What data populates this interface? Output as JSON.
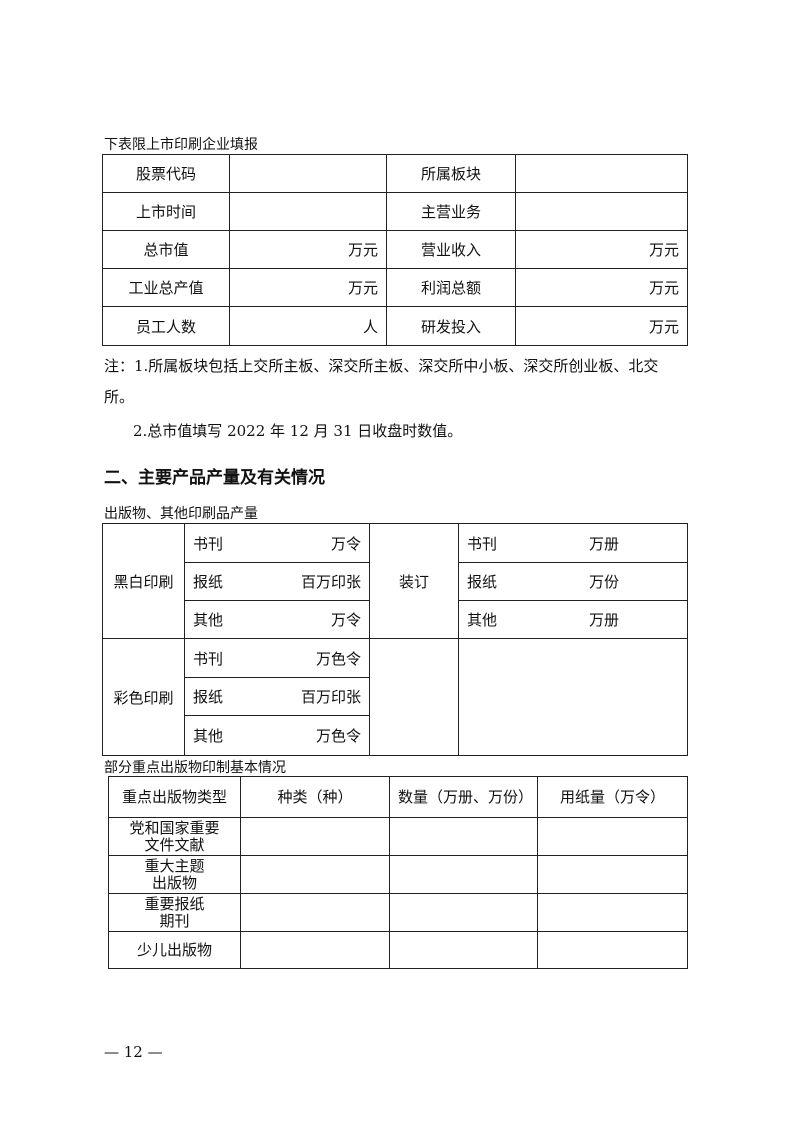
{
  "listed": {
    "caption": "下表限上市印刷企业填报",
    "rows": [
      [
        "股票代码",
        "",
        "所属板块",
        ""
      ],
      [
        "上市时间",
        "",
        "主营业务",
        ""
      ],
      [
        "总市值",
        "万元",
        "营业收入",
        "万元"
      ],
      [
        "工业总产值",
        "万元",
        "利润总额",
        "万元"
      ],
      [
        "员工人数",
        "人",
        "研发投入",
        "万元"
      ]
    ]
  },
  "notes": {
    "n1a": "注：1.所属板块包括上交所主板、深交所主板、深交所中小板、深交所创业板、北交",
    "n1b": "所。",
    "n2": "2.总市值填写 2022 年 12 月 31 日收盘时数值。"
  },
  "section2": {
    "title": "二、主要产品产量及有关情况"
  },
  "output": {
    "caption": "出版物、其他印刷品产量",
    "bw": {
      "label": "黑白印刷",
      "items": [
        [
          "书刊",
          "万令"
        ],
        [
          "报纸",
          "百万印张"
        ],
        [
          "其他",
          "万令"
        ]
      ]
    },
    "color": {
      "label": "彩色印刷",
      "items": [
        [
          "书刊",
          "万色令"
        ],
        [
          "报纸",
          "百万印张"
        ],
        [
          "其他",
          "万色令"
        ]
      ]
    },
    "binding": {
      "label": "装订",
      "items": [
        [
          "书刊",
          "万册"
        ],
        [
          "报纸",
          "万份"
        ],
        [
          "其他",
          "万册"
        ]
      ]
    }
  },
  "key": {
    "caption": "部分重点出版物印制基本情况",
    "headers": [
      "重点出版物类型",
      "种类（种）",
      "数量（万册、万份）",
      "用纸量（万令）"
    ],
    "rows": [
      [
        "党和国家重要",
        "文件文献"
      ],
      [
        "重大主题",
        "出版物"
      ],
      [
        "重要报纸",
        "期刊"
      ],
      [
        "少儿出版物",
        ""
      ]
    ]
  },
  "footer": {
    "page": "— 12 —"
  }
}
